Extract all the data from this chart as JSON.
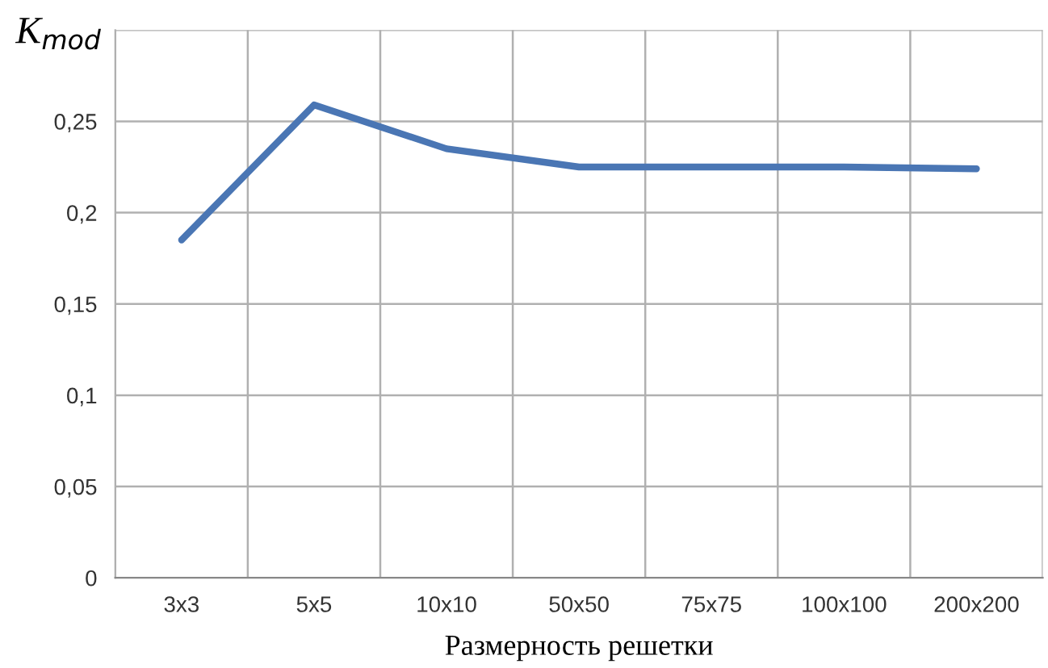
{
  "chart_data": {
    "type": "line",
    "categories": [
      "3x3",
      "5x5",
      "10x10",
      "50x50",
      "75x75",
      "100x100",
      "200x200"
    ],
    "series": [
      {
        "color": "#4a76b4",
        "values": [
          0.185,
          0.259,
          0.235,
          0.225,
          0.225,
          0.225,
          0.224
        ]
      }
    ],
    "xlabel": "Размерность решетки",
    "ylabel": "K$_{mod}$",
    "ylim": [
      0,
      0.3
    ],
    "yticks": [
      0,
      {
        "value": 0.05,
        "label": "0,05"
      },
      {
        "value": 0.1,
        "label": "0,1"
      },
      {
        "value": 0.15,
        "label": "0,15"
      },
      {
        "value": 0.2,
        "label": "0,2"
      },
      {
        "value": 0.25,
        "label": "0,25"
      },
      {
        "value": 0.3,
        "label": null
      }
    ],
    "grid": true,
    "line_style": "solid"
  }
}
